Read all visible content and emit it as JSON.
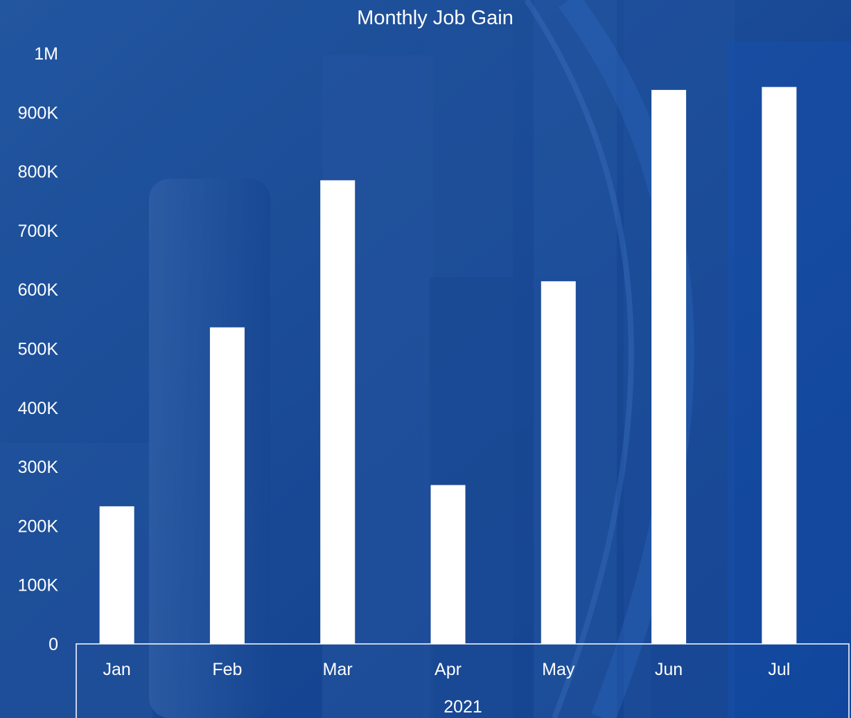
{
  "chart_data": {
    "type": "bar",
    "title": "Monthly Job Gain",
    "categories": [
      "Jan",
      "Feb",
      "Mar",
      "Apr",
      "May",
      "Jun",
      "Jul"
    ],
    "values": [
      233000,
      536000,
      785000,
      269000,
      614000,
      938000,
      943000
    ],
    "group_label": "2021",
    "xlabel": "",
    "ylabel": "",
    "ylim": [
      0,
      1000000
    ],
    "yticks": [
      0,
      100000,
      200000,
      300000,
      400000,
      500000,
      600000,
      700000,
      800000,
      900000,
      1000000
    ],
    "ytick_labels": [
      "0",
      "100K",
      "200K",
      "300K",
      "400K",
      "500K",
      "600K",
      "700K",
      "800K",
      "900K",
      "1M"
    ],
    "grid": false,
    "legend": "none"
  },
  "colors": {
    "background": "#1f4f9a",
    "bar": "#ffffff",
    "text": "#ffffff",
    "axis": "#ffffff"
  }
}
